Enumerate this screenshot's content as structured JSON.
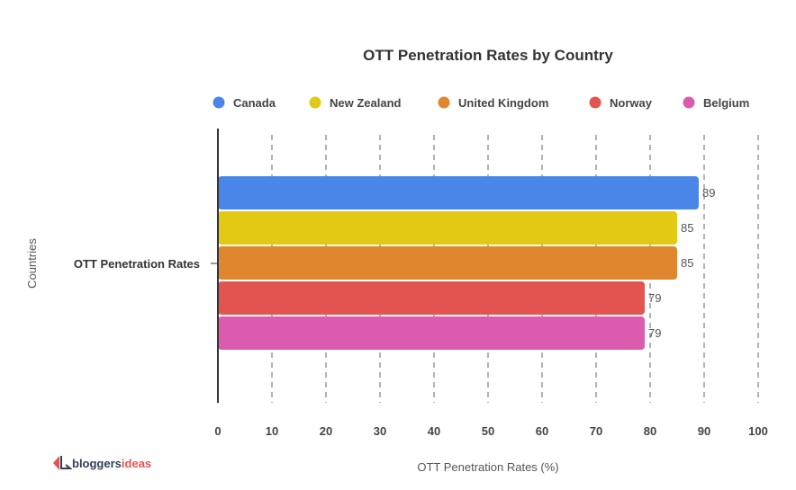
{
  "chart_data": {
    "type": "bar",
    "orientation": "horizontal",
    "title": "OTT Penetration Rates by Country",
    "xlabel": "OTT Penetration Rates (%)",
    "ylabel": "Countries",
    "categories": [
      "OTT Penetration Rates"
    ],
    "series": [
      {
        "name": "Canada",
        "values": [
          89
        ],
        "color": "#4A86E8"
      },
      {
        "name": "New Zealand",
        "values": [
          85
        ],
        "color": "#E2C914"
      },
      {
        "name": "United Kingdom",
        "values": [
          85
        ],
        "color": "#E0862E"
      },
      {
        "name": "Norway",
        "values": [
          79
        ],
        "color": "#E35451"
      },
      {
        "name": "Belgium",
        "values": [
          79
        ],
        "color": "#DC5BAE"
      }
    ],
    "xlim": [
      0,
      100
    ],
    "xticks": [
      "0",
      "10",
      "20",
      "30",
      "40",
      "50",
      "60",
      "70",
      "80",
      "90",
      "100"
    ],
    "grid": "vertical dashed",
    "legend": "top"
  },
  "logo": {
    "part1": "bloggers",
    "part2": "ideas"
  }
}
